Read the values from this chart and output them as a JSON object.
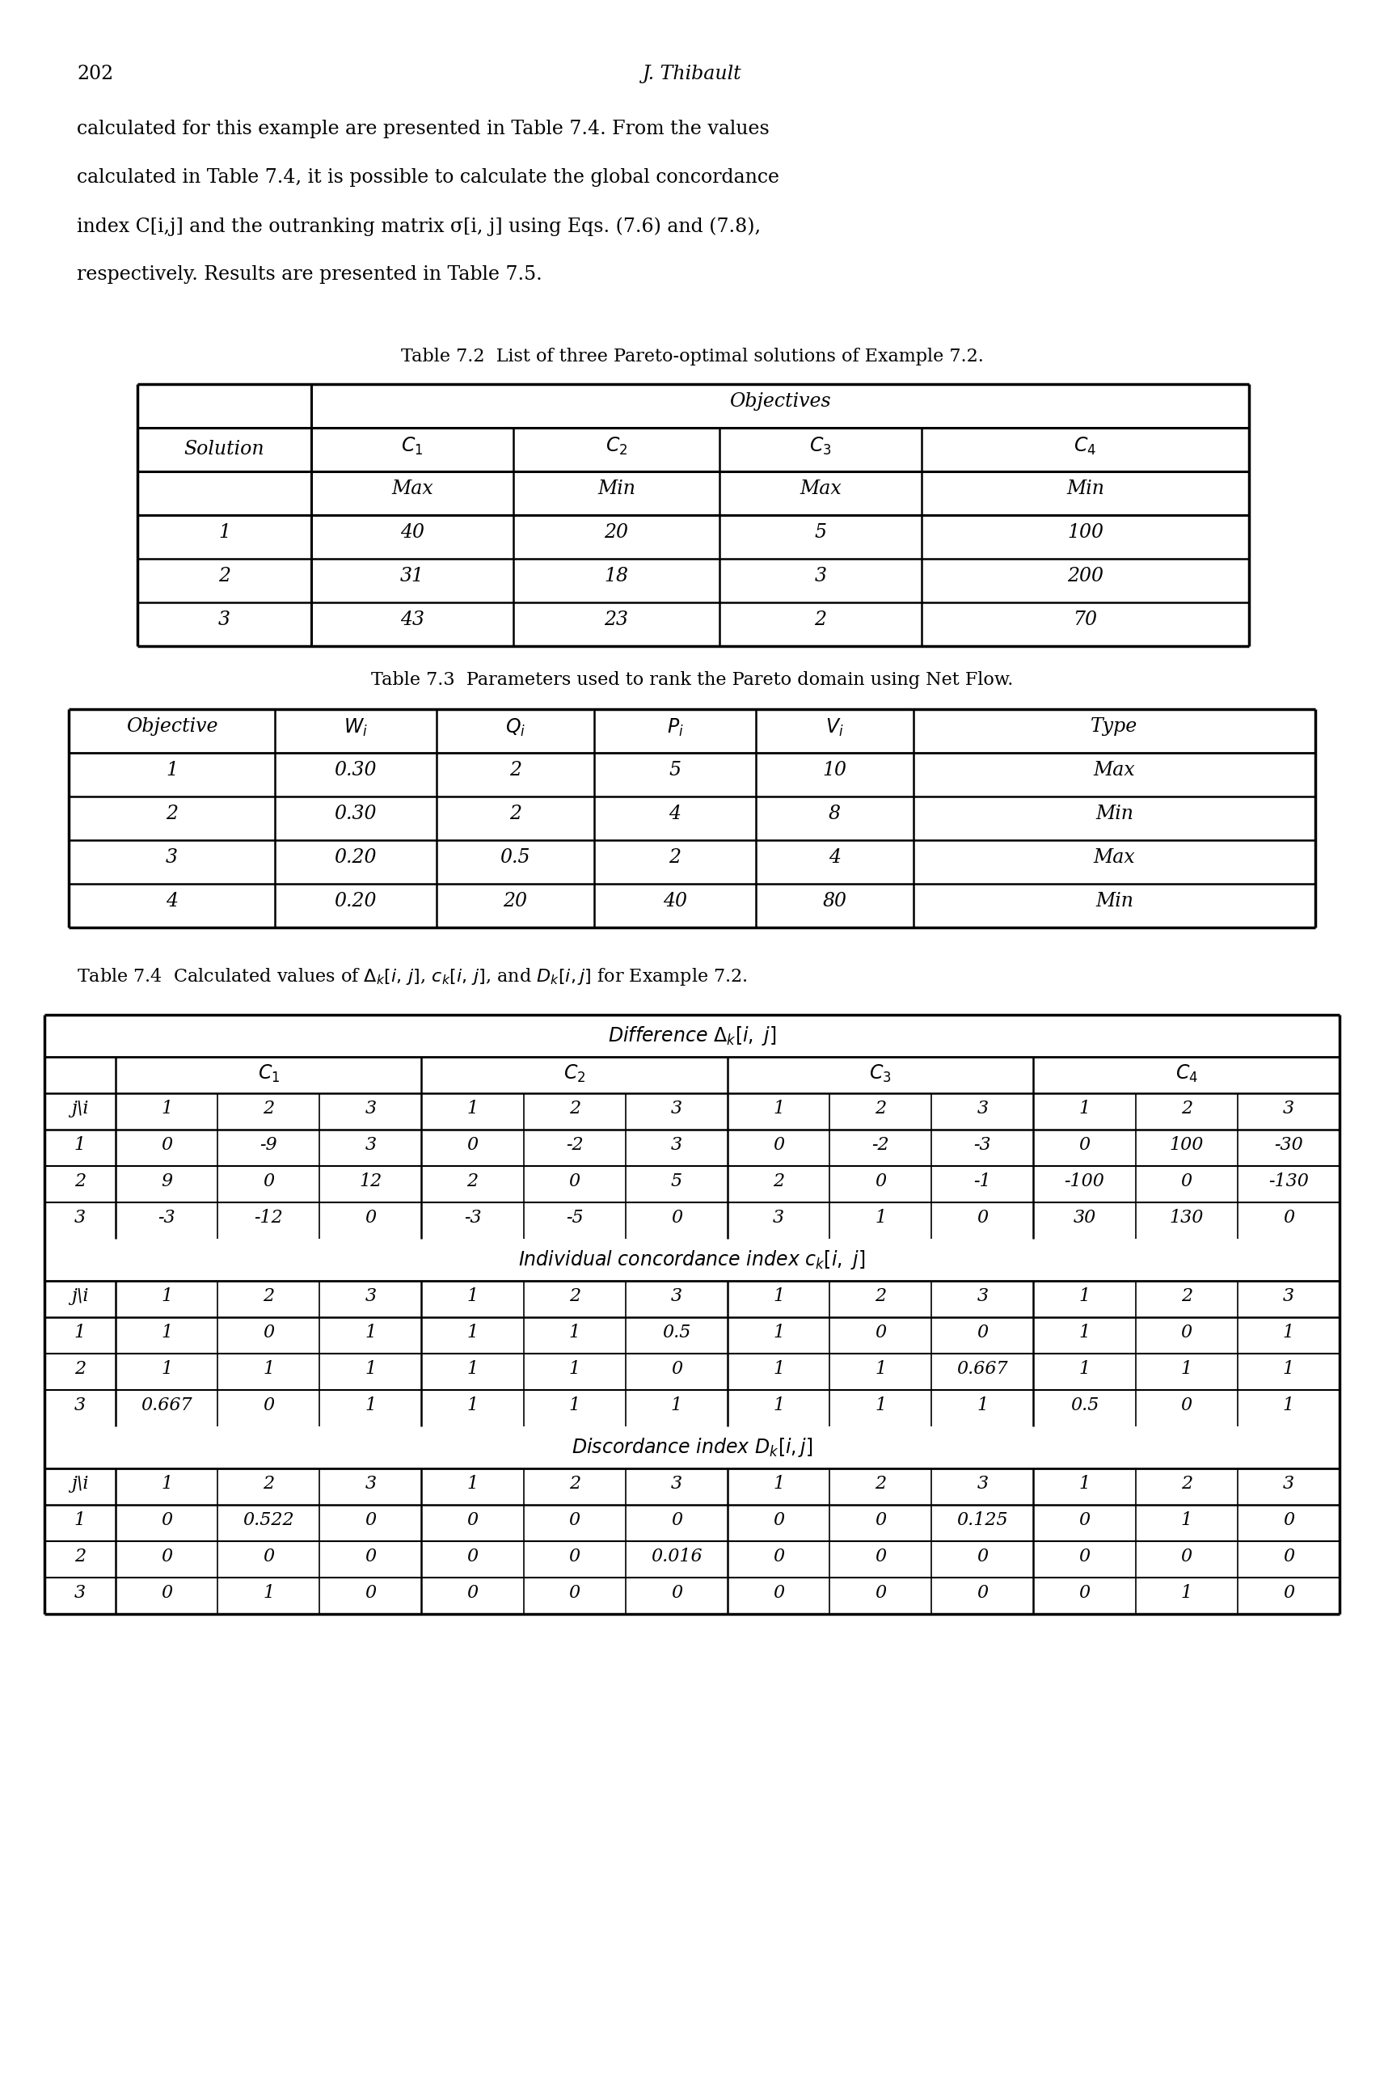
{
  "page_number": "202",
  "author": "J. Thibault",
  "body_text": [
    "calculated for this example are presented in Table 7.4. From the values",
    "calculated in Table 7.4, it is possible to calculate the global concordance",
    "index C[i,j] and the outranking matrix σ[i, j] using Eqs. (7.6) and (7.8),",
    "respectively. Results are presented in Table 7.5."
  ],
  "table72": {
    "title": "Table 7.2  List of three Pareto-optimal solutions of Example 7.2.",
    "data": [
      [
        "1",
        "40",
        "20",
        "5",
        "100"
      ],
      [
        "2",
        "31",
        "18",
        "3",
        "200"
      ],
      [
        "3",
        "43",
        "23",
        "2",
        "70"
      ]
    ]
  },
  "table73": {
    "title": "Table 7.3  Parameters used to rank the Pareto domain using Net Flow.",
    "data": [
      [
        "1",
        "0.30",
        "2",
        "5",
        "10",
        "Max"
      ],
      [
        "2",
        "0.30",
        "2",
        "4",
        "8",
        "Min"
      ],
      [
        "3",
        "0.20",
        "0.5",
        "2",
        "4",
        "Max"
      ],
      [
        "4",
        "0.20",
        "20",
        "40",
        "80",
        "Min"
      ]
    ]
  },
  "table74": {
    "diff_data": [
      [
        "0",
        "-9",
        "3",
        "0",
        "-2",
        "3",
        "0",
        "-2",
        "-3",
        "0",
        "100",
        "-30"
      ],
      [
        "9",
        "0",
        "12",
        "2",
        "0",
        "5",
        "2",
        "0",
        "-1",
        "-100",
        "0",
        "-130"
      ],
      [
        "-3",
        "-12",
        "0",
        "-3",
        "-5",
        "0",
        "3",
        "1",
        "0",
        "30",
        "130",
        "0"
      ]
    ],
    "conc_data": [
      [
        "1",
        "0",
        "1",
        "1",
        "1",
        "0.5",
        "1",
        "0",
        "0",
        "1",
        "0",
        "1"
      ],
      [
        "1",
        "1",
        "1",
        "1",
        "1",
        "0",
        "1",
        "1",
        "0.667",
        "1",
        "1",
        "1"
      ],
      [
        "0.667",
        "0",
        "1",
        "1",
        "1",
        "1",
        "1",
        "1",
        "1",
        "0.5",
        "0",
        "1"
      ]
    ],
    "disc_data": [
      [
        "0",
        "0.522",
        "0",
        "0",
        "0",
        "0",
        "0",
        "0",
        "0.125",
        "0",
        "1",
        "0"
      ],
      [
        "0",
        "0",
        "0",
        "0",
        "0",
        "0.016",
        "0",
        "0",
        "0",
        "0",
        "0",
        "0"
      ],
      [
        "0",
        "1",
        "0",
        "0",
        "0",
        "0",
        "0",
        "0",
        "0",
        "0",
        "1",
        "0"
      ]
    ]
  },
  "bg": "#ffffff",
  "fg": "#000000"
}
